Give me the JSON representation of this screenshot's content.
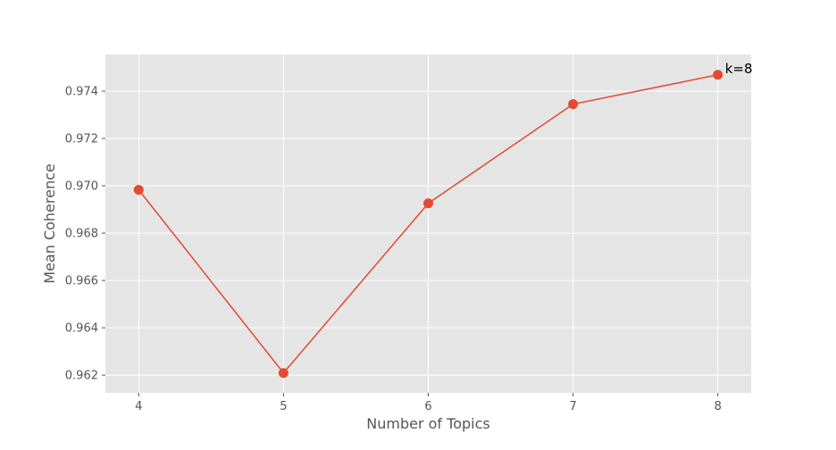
{
  "chart_data": {
    "type": "line",
    "xlabel": "Number of Topics",
    "ylabel": "Mean Coherence",
    "x": [
      4,
      5,
      6,
      7,
      8
    ],
    "series": [
      {
        "values": [
          0.96983,
          0.96209,
          0.96926,
          0.97345,
          0.97469
        ]
      }
    ],
    "xlim": [
      3.77,
      8.23
    ],
    "ylim": [
      0.96125,
      0.97555
    ],
    "xticks": [
      4,
      5,
      6,
      7,
      8
    ],
    "yticks": [
      0.962,
      0.964,
      0.966,
      0.968,
      0.97,
      0.972,
      0.974
    ],
    "ytick_labels": [
      "0.962",
      "0.964",
      "0.966",
      "0.968",
      "0.970",
      "0.972",
      "0.974"
    ],
    "grid": true,
    "legend": false,
    "annotation": {
      "text": "k=8",
      "x": 8,
      "y": 0.97469
    },
    "colors": {
      "line": "#E24A33",
      "plot_bg": "#E5E5E5",
      "grid": "#FFFFFF",
      "text": "#555555"
    }
  }
}
